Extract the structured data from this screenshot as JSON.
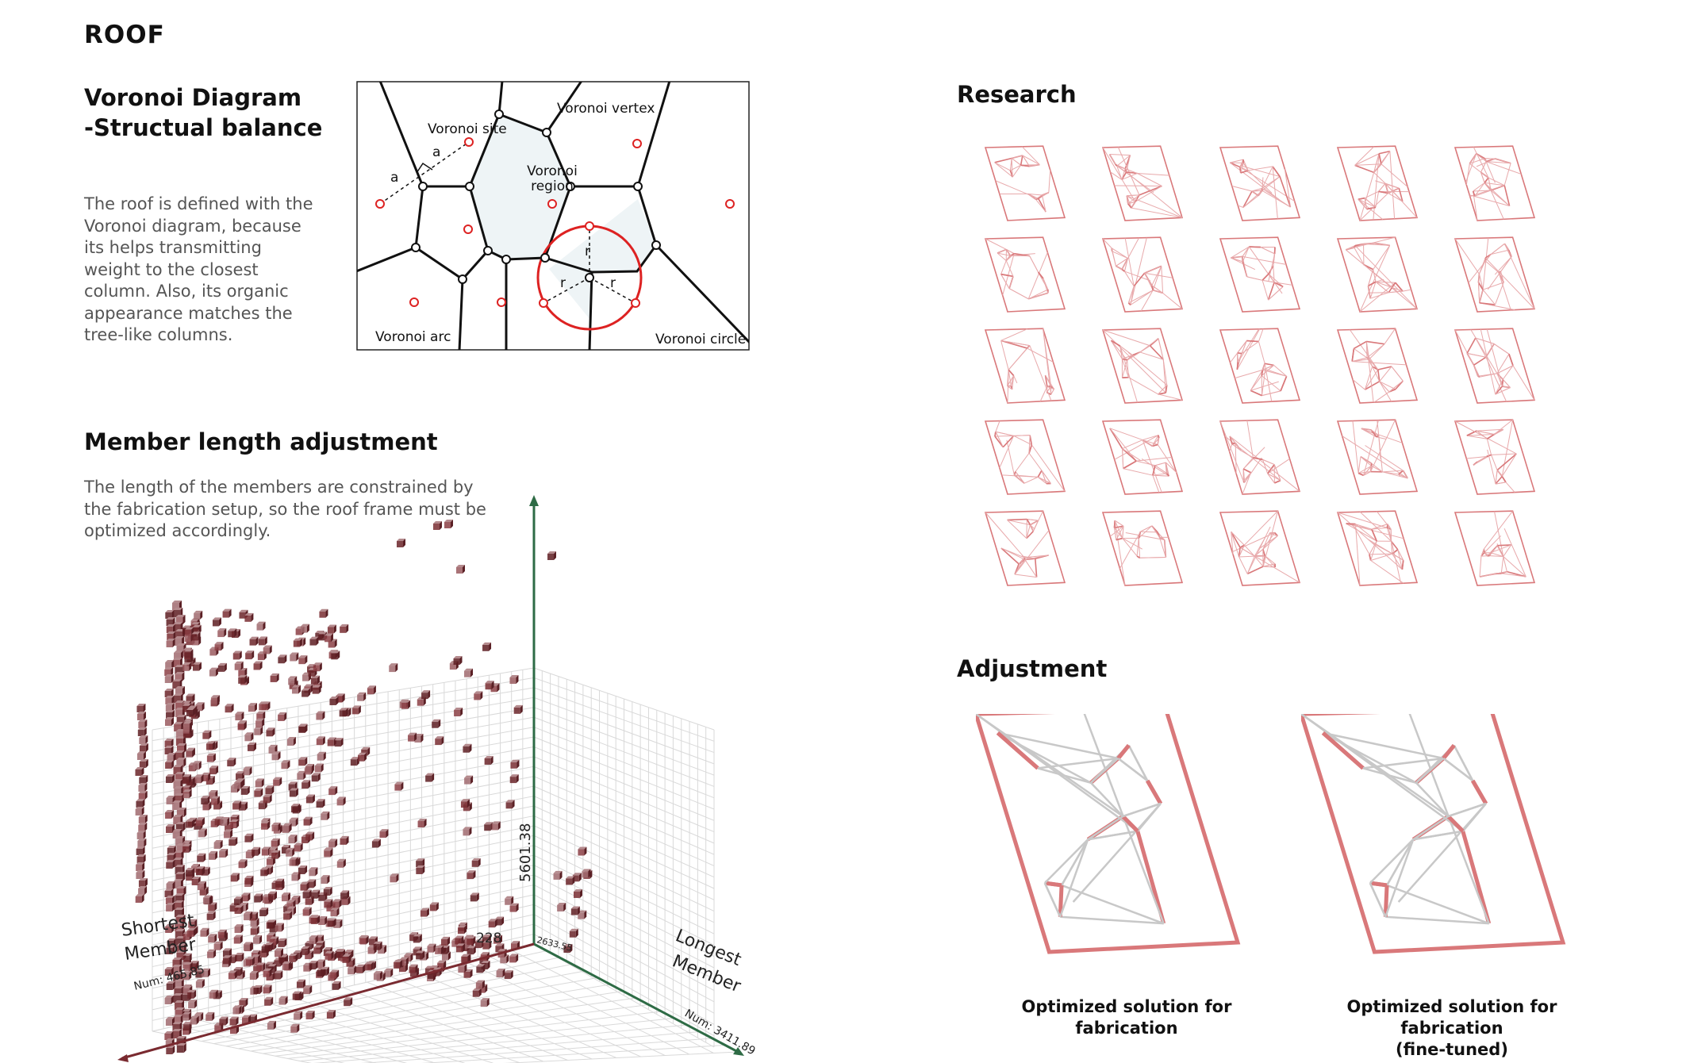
{
  "page": {
    "title": "ROOF"
  },
  "voronoi": {
    "heading_line1": "Voronoi Diagram",
    "heading_line2": "-Structual balance",
    "body": "The roof is defined with the Voronoi diagram, because its helps transmitting weight to the closest column. Also, its organic appearance matches the tree-like columns.",
    "body_lines": [
      "The roof is defined with the",
      "Voronoi diagram, because",
      "its helps transmitting",
      "weight to the closest",
      "column. Also, its organic",
      "appearance matches the",
      "tree-like columns."
    ],
    "labels": {
      "site": "Voronoi site",
      "vertex": "Voronoi vertex",
      "region_line1": "Voronoi",
      "region_line2": "region",
      "arc": "Voronoi arc",
      "circle": "Voronoi circle",
      "a": "a",
      "r": "r"
    }
  },
  "member": {
    "heading": "Member length adjustment",
    "body_lines": [
      "The length of the members are constrained by",
      "the fabrication setup, so the roof frame must be",
      "optimized accordingly."
    ],
    "chart": {
      "axis_left_line1": "Shortest",
      "axis_left_line2": "Member",
      "axis_right_line1": "Longest",
      "axis_right_line2": "Member",
      "num_left": "Num: 465.85",
      "num_right": "Num: 3411.89",
      "vertical_value": "5601.38",
      "origin_value": "2633.55",
      "small_value": "228"
    }
  },
  "research": {
    "heading": "Research",
    "grid_rows": 5,
    "grid_cols": 5
  },
  "adjustment": {
    "heading": "Adjustment",
    "caption_left": "Optimized solution for fabrication",
    "caption_right_line1": "Optimized solution for fabrication",
    "caption_right_line2": "(fine-tuned)"
  },
  "colors": {
    "accent": "#d9787a",
    "site_red": "#dd2222",
    "cube": "#7a2e33",
    "axis_green": "#2e6b45",
    "axis_red": "#7a2a30"
  }
}
